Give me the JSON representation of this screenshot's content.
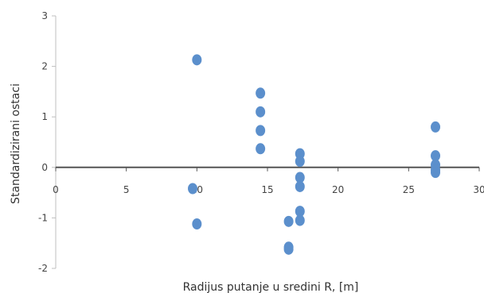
{
  "chart_data": {
    "type": "scatter",
    "title": "",
    "xlabel": "Radijus putanje u sredini R, [m]",
    "ylabel": "Standardizirani ostaci",
    "xlim": [
      0,
      30
    ],
    "ylim": [
      -2,
      3
    ],
    "x_ticks": [
      "0",
      "5",
      "10",
      "15",
      "20",
      "25",
      "30"
    ],
    "y_ticks": [
      "-2",
      "-1",
      "0",
      "1",
      "2",
      "3"
    ],
    "grid": false,
    "legend": "none",
    "colors": {
      "marker": "#5b8fcc",
      "zero_line": "#555555",
      "axis": "#bfbfbf",
      "text": "#444444"
    },
    "series": [
      {
        "points": [
          [
            9.7,
            -0.42
          ],
          [
            10.0,
            2.13
          ],
          [
            10.0,
            -1.12
          ],
          [
            14.5,
            1.47
          ],
          [
            14.5,
            1.1
          ],
          [
            14.5,
            0.73
          ],
          [
            14.5,
            0.37
          ],
          [
            16.5,
            -1.07
          ],
          [
            16.5,
            -1.58
          ],
          [
            16.5,
            -1.62
          ],
          [
            17.3,
            0.27
          ],
          [
            17.3,
            0.12
          ],
          [
            17.3,
            -0.2
          ],
          [
            17.3,
            -0.38
          ],
          [
            17.3,
            -0.87
          ],
          [
            17.3,
            -1.05
          ],
          [
            26.9,
            0.8
          ],
          [
            26.9,
            0.23
          ],
          [
            26.9,
            0.05
          ],
          [
            26.9,
            -0.05
          ],
          [
            26.9,
            -0.1
          ]
        ]
      }
    ]
  }
}
